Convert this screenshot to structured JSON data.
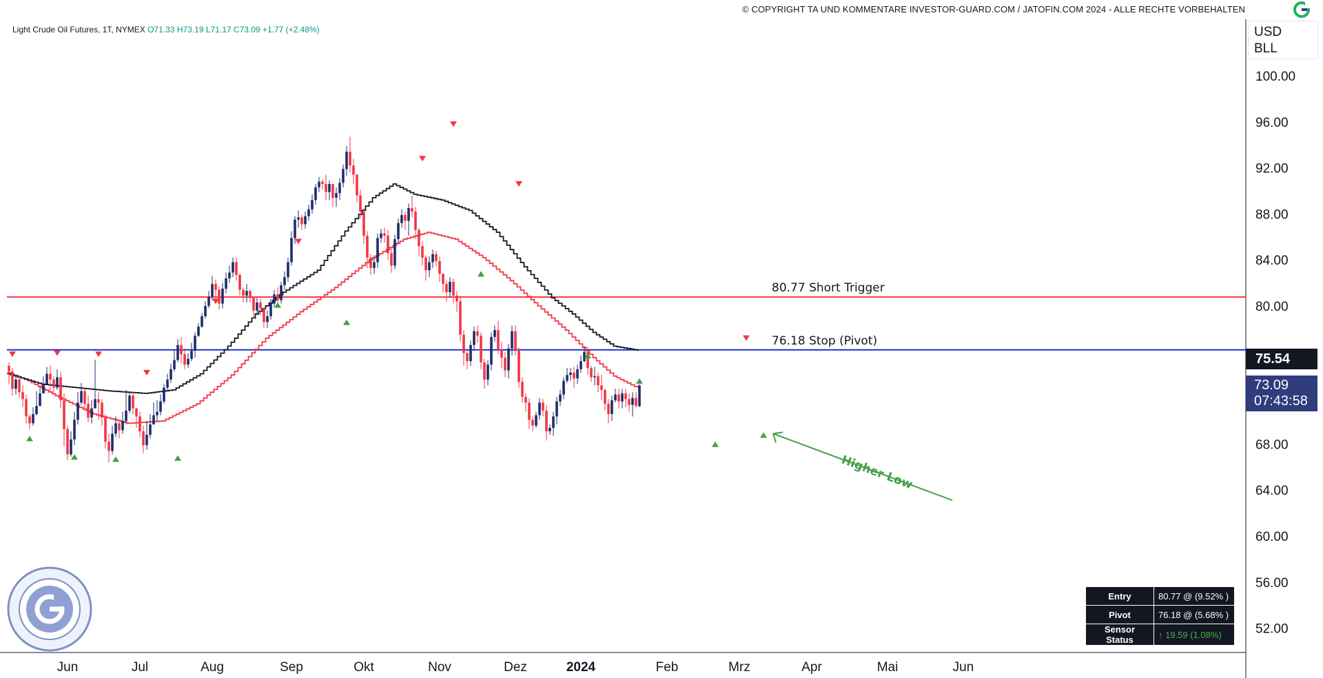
{
  "header": {
    "copyright": "© COPYRIGHT TA UND KOMMENTARE INVESTOR-GUARD.COM / JATOFIN.COM 2024 - ALLE RECHTE VORBEHALTEN",
    "logo_icon": "investor-guard-logo-icon"
  },
  "legend": {
    "symbol": "Light Crude Oil Futures, 1T, NYMEX",
    "open": "O71.33",
    "high": "H73.19",
    "low": "L71.17",
    "close": "C73.09",
    "change": "+1.77 (+2.48%)"
  },
  "price_scale": {
    "currency": "USD",
    "unit": "BLL",
    "stop_price_tag": "75.54",
    "last_price": "73.09",
    "countdown": "07:43:58"
  },
  "info_table": [
    {
      "key": "Entry",
      "value": "80.77 @ (9.52% )"
    },
    {
      "key": "Pivot",
      "value": "76.18 @ (5.68% )"
    },
    {
      "key": "Sensor Status",
      "value": "↑ 19.59 (1.08%)"
    }
  ],
  "colors": {
    "up": "#1f2d6b",
    "down": "#f23645",
    "short_trigger": "#f23645",
    "stop_line": "#1f2fd1",
    "slow_ma": "#131722",
    "fast_ma": "#f23645",
    "higher_low": "#43a047",
    "arrow_up": "#43a047",
    "arrow_down": "#f23645"
  },
  "chart_data": {
    "type": "candlestick",
    "title": "Light Crude Oil Futures, 1T, NYMEX",
    "xlabel": "",
    "ylabel": "",
    "ylim": [
      49.5,
      103
    ],
    "yticks": [
      "100.00",
      "96.00",
      "92.00",
      "88.00",
      "84.00",
      "80.00",
      "68.00",
      "64.00",
      "60.00",
      "56.00",
      "52.00"
    ],
    "xticks": [
      "Jun",
      "Jul",
      "Aug",
      "Sep",
      "Okt",
      "Nov",
      "Dez",
      "2024",
      "Feb",
      "Mrz",
      "Apr",
      "Mai",
      "Jun"
    ],
    "grid": false,
    "start_date": "2023-05-24",
    "series": [
      {
        "name": "Light Crude Oil Futures",
        "kind": "ohlc",
        "close": [
          74.3,
          72.8,
          73.6,
          72.5,
          71.9,
          70.4,
          69.8,
          70.6,
          71.3,
          72.4,
          73.2,
          74.1,
          73.6,
          72.9,
          73.8,
          71.8,
          69.3,
          67.1,
          68.4,
          70.1,
          71.6,
          72.6,
          71.5,
          70.3,
          71.1,
          71.9,
          71.6,
          70.3,
          68.2,
          67.4,
          68.9,
          69.8,
          69.2,
          70.0,
          70.9,
          72.2,
          71.1,
          70.4,
          69.1,
          67.9,
          68.8,
          69.7,
          70.5,
          70.8,
          71.7,
          72.9,
          73.6,
          74.5,
          75.3,
          76.6,
          75.8,
          74.9,
          75.4,
          76.1,
          77.4,
          78.2,
          79.1,
          80.0,
          80.8,
          81.9,
          81.4,
          80.2,
          81.5,
          82.4,
          82.9,
          83.8,
          82.7,
          81.4,
          80.9,
          81.3,
          80.7,
          79.6,
          80.3,
          79.8,
          78.6,
          79.1,
          80.2,
          81.0,
          80.5,
          81.8,
          82.5,
          83.8,
          85.9,
          87.5,
          87.7,
          87.1,
          87.8,
          88.4,
          89.2,
          90.3,
          90.8,
          90.6,
          89.9,
          90.6,
          89.4,
          89.8,
          90.7,
          91.9,
          93.4,
          92.2,
          91.4,
          89.6,
          88.2,
          86.1,
          84.2,
          83.3,
          83.8,
          85.9,
          86.3,
          86.1,
          84.6,
          83.5,
          85.8,
          87.2,
          87.9,
          87.4,
          88.5,
          88.2,
          86.6,
          85.2,
          84.2,
          83.1,
          83.8,
          84.5,
          83.9,
          82.8,
          81.9,
          81.2,
          82.1,
          80.9,
          80.4,
          77.5,
          75.9,
          75.2,
          76.6,
          77.8,
          77.4,
          75.1,
          73.6,
          74.9,
          77.3,
          77.9,
          76.2,
          75.5,
          74.4,
          76.3,
          77.8,
          76.1,
          73.4,
          72.1,
          71.6,
          70.1,
          69.6,
          70.5,
          71.6,
          70.9,
          69.1,
          69.4,
          70.4,
          71.7,
          72.3,
          73.5,
          74.0,
          74.2,
          73.7,
          74.5,
          75.2,
          76.0,
          74.6,
          73.8,
          73.9,
          73.1,
          72.7,
          71.5,
          70.6,
          71.8,
          72.3,
          71.7,
          72.4,
          71.9,
          71.4,
          72.0,
          71.3,
          73.09
        ],
        "high": [
          75.1,
          74.6,
          73.9,
          74.0,
          73.1,
          72.3,
          70.6,
          71.2,
          72.6,
          73.0,
          73.9,
          74.7,
          74.8,
          73.9,
          74.5,
          74.3,
          72.4,
          69.6,
          69.1,
          70.8,
          72.5,
          73.3,
          72.8,
          72.2,
          71.8,
          75.3,
          72.5,
          71.9,
          70.6,
          68.9,
          69.6,
          70.4,
          70.1,
          70.8,
          72.7,
          72.5,
          72.5,
          71.0,
          70.8,
          69.6,
          70.0,
          70.6,
          71.6,
          71.8,
          72.3,
          73.2,
          74.1,
          75.0,
          76.2,
          77.1,
          77.3,
          76.3,
          75.9,
          76.8,
          77.7,
          78.5,
          79.4,
          80.4,
          81.3,
          82.6,
          82.3,
          81.7,
          82.0,
          82.9,
          83.5,
          84.2,
          84.2,
          82.8,
          81.6,
          81.9,
          81.4,
          80.7,
          80.7,
          80.6,
          79.8,
          79.6,
          80.6,
          81.4,
          81.6,
          82.1,
          83.0,
          84.2,
          86.5,
          87.8,
          88.3,
          87.9,
          88.2,
          88.8,
          89.7,
          90.6,
          91.2,
          91.0,
          91.4,
          90.9,
          90.6,
          90.3,
          91.1,
          92.3,
          93.9,
          94.7,
          92.8,
          91.5,
          90.1,
          88.5,
          86.5,
          84.5,
          84.4,
          86.3,
          86.7,
          86.8,
          86.6,
          85.1,
          86.2,
          87.6,
          88.4,
          88.2,
          88.9,
          89.6,
          88.6,
          86.8,
          85.6,
          84.4,
          84.3,
          84.9,
          84.8,
          84.3,
          82.8,
          82.2,
          82.5,
          82.4,
          81.3,
          80.9,
          77.9,
          76.1,
          77.0,
          78.2,
          78.3,
          77.7,
          75.4,
          75.3,
          77.7,
          78.3,
          78.7,
          76.9,
          76.0,
          76.7,
          78.3,
          78.3,
          76.4,
          73.8,
          72.4,
          72.0,
          70.4,
          70.8,
          72.0,
          71.9,
          71.4,
          69.7,
          70.8,
          72.1,
          72.7,
          73.8,
          74.6,
          74.6,
          74.7,
          74.9,
          75.7,
          76.5,
          76.4,
          74.8,
          74.7,
          74.2,
          74.0,
          72.8,
          71.9,
          72.2,
          72.8,
          72.8,
          72.8,
          72.8,
          72.4,
          72.5,
          72.5,
          73.19
        ],
        "low": [
          73.2,
          72.2,
          72.3,
          72.0,
          71.2,
          69.8,
          69.3,
          69.6,
          70.5,
          71.6,
          72.6,
          73.2,
          72.5,
          72.4,
          72.7,
          71.1,
          67.8,
          66.6,
          66.9,
          67.9,
          69.7,
          71.4,
          70.9,
          69.9,
          69.8,
          71.3,
          70.1,
          69.6,
          67.6,
          66.4,
          67.1,
          68.6,
          68.5,
          68.9,
          69.7,
          70.7,
          70.6,
          69.4,
          68.6,
          67.2,
          67.5,
          68.5,
          69.8,
          70.0,
          70.5,
          71.5,
          72.7,
          73.3,
          74.3,
          75.1,
          75.0,
          74.5,
          74.6,
          75.2,
          75.5,
          77.3,
          78.1,
          78.9,
          79.8,
          80.5,
          80.6,
          79.7,
          79.8,
          81.1,
          82.0,
          82.5,
          82.2,
          80.9,
          80.3,
          80.3,
          80.3,
          78.9,
          79.2,
          79.2,
          78.1,
          78.1,
          78.8,
          79.9,
          80.1,
          80.2,
          81.4,
          82.1,
          83.5,
          85.4,
          86.8,
          86.6,
          86.7,
          87.4,
          88.0,
          88.8,
          89.9,
          90.1,
          89.2,
          89.2,
          88.6,
          88.6,
          89.2,
          90.3,
          91.3,
          91.6,
          90.6,
          89.0,
          87.6,
          85.4,
          83.3,
          82.7,
          82.8,
          83.3,
          85.5,
          85.5,
          84.0,
          82.9,
          83.2,
          85.4,
          86.8,
          86.6,
          86.1,
          87.7,
          85.8,
          84.3,
          83.5,
          82.2,
          82.5,
          83.3,
          83.4,
          82.1,
          81.2,
          80.4,
          80.7,
          80.2,
          79.5,
          76.9,
          74.8,
          74.5,
          74.8,
          76.1,
          76.8,
          74.5,
          72.8,
          73.1,
          74.4,
          76.9,
          75.8,
          74.6,
          73.8,
          73.7,
          75.7,
          75.7,
          72.9,
          71.6,
          70.8,
          69.3,
          69.1,
          69.4,
          70.1,
          70.4,
          68.3,
          68.8,
          68.7,
          69.7,
          71.3,
          71.9,
          73.3,
          73.5,
          72.9,
          73.2,
          74.2,
          75.1,
          74.0,
          73.4,
          73.1,
          72.5,
          71.8,
          70.9,
          69.8,
          70.0,
          71.6,
          71.1,
          71.1,
          71.2,
          70.8,
          70.4,
          71.17,
          71.2
        ]
      },
      {
        "name": "fast_ma",
        "kind": "line",
        "color": "#f23645",
        "key_points": [
          [
            0,
            74.2
          ],
          [
            6,
            73.5
          ],
          [
            14,
            72.2
          ],
          [
            25,
            70.6
          ],
          [
            35,
            69.8
          ],
          [
            45,
            70.0
          ],
          [
            55,
            71.5
          ],
          [
            65,
            74.0
          ],
          [
            75,
            77.2
          ],
          [
            85,
            79.5
          ],
          [
            95,
            81.6
          ],
          [
            105,
            84.0
          ],
          [
            115,
            85.8
          ],
          [
            122,
            86.4
          ],
          [
            130,
            85.8
          ],
          [
            138,
            84.2
          ],
          [
            146,
            82.2
          ],
          [
            154,
            80.0
          ],
          [
            162,
            77.9
          ],
          [
            170,
            75.5
          ],
          [
            176,
            73.9
          ],
          [
            182,
            73.0
          ],
          [
            188,
            72.4
          ]
        ]
      },
      {
        "name": "slow_ma",
        "kind": "line",
        "color": "#131722",
        "key_points": [
          [
            0,
            74.1
          ],
          [
            10,
            73.2
          ],
          [
            20,
            72.9
          ],
          [
            30,
            72.6
          ],
          [
            40,
            72.4
          ],
          [
            48,
            72.7
          ],
          [
            56,
            74.1
          ],
          [
            64,
            76.5
          ],
          [
            72,
            79.3
          ],
          [
            80,
            81.2
          ],
          [
            90,
            83.1
          ],
          [
            98,
            86.5
          ],
          [
            106,
            89.4
          ],
          [
            112,
            90.6
          ],
          [
            118,
            89.7
          ],
          [
            126,
            89.2
          ],
          [
            134,
            88.3
          ],
          [
            142,
            86.4
          ],
          [
            150,
            83.4
          ],
          [
            158,
            80.7
          ],
          [
            164,
            79.3
          ],
          [
            170,
            77.7
          ],
          [
            176,
            76.5
          ],
          [
            182,
            76.2
          ],
          [
            188,
            75.54
          ]
        ]
      }
    ],
    "pivot_markers_high": [
      [
        1,
        75.2
      ],
      [
        14,
        75.3
      ],
      [
        26,
        75.2
      ],
      [
        40,
        73.6
      ],
      [
        60,
        79.8
      ],
      [
        84,
        85.0
      ],
      [
        120,
        92.2
      ],
      [
        129,
        95.2
      ],
      [
        148,
        90.0
      ],
      [
        214,
        76.6
      ]
    ],
    "pivot_markers_low": [
      [
        6,
        69.2
      ],
      [
        19,
        67.6
      ],
      [
        31,
        67.4
      ],
      [
        49,
        67.5
      ],
      [
        78,
        80.8
      ],
      [
        98,
        79.3
      ],
      [
        137,
        83.5
      ],
      [
        168,
        76.4
      ],
      [
        183,
        74.2
      ],
      [
        205,
        68.7
      ],
      [
        219,
        69.5
      ]
    ],
    "hlines": [
      {
        "value": 80.77,
        "label": "80.77  Short Trigger",
        "color": "#f23645"
      },
      {
        "value": 76.18,
        "label": "76.18  Stop (Pivot)",
        "color": "#1f2fd1"
      }
    ],
    "annotations": [
      {
        "text": "Higher Low",
        "color": "#43a047"
      }
    ]
  }
}
